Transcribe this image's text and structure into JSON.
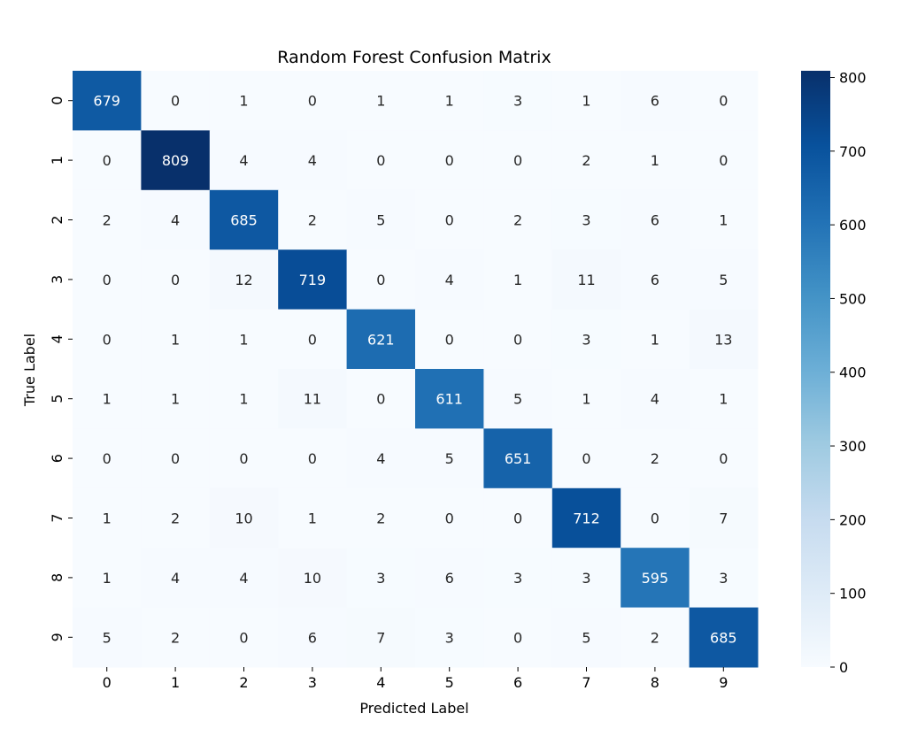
{
  "chart_data": {
    "type": "heatmap",
    "title": "Random Forest Confusion Matrix",
    "xlabel": "Predicted Label",
    "ylabel": "True Label",
    "x_categories": [
      "0",
      "1",
      "2",
      "3",
      "4",
      "5",
      "6",
      "7",
      "8",
      "9"
    ],
    "y_categories": [
      "0",
      "1",
      "2",
      "3",
      "4",
      "5",
      "6",
      "7",
      "8",
      "9"
    ],
    "values": [
      [
        679,
        0,
        1,
        0,
        1,
        1,
        3,
        1,
        6,
        0
      ],
      [
        0,
        809,
        4,
        4,
        0,
        0,
        0,
        2,
        1,
        0
      ],
      [
        2,
        4,
        685,
        2,
        5,
        0,
        2,
        3,
        6,
        1
      ],
      [
        0,
        0,
        12,
        719,
        0,
        4,
        1,
        11,
        6,
        5
      ],
      [
        0,
        1,
        1,
        0,
        621,
        0,
        0,
        3,
        1,
        13
      ],
      [
        1,
        1,
        1,
        11,
        0,
        611,
        5,
        1,
        4,
        1
      ],
      [
        0,
        0,
        0,
        0,
        4,
        5,
        651,
        0,
        2,
        0
      ],
      [
        1,
        2,
        10,
        1,
        2,
        0,
        0,
        712,
        0,
        7
      ],
      [
        1,
        4,
        4,
        10,
        3,
        6,
        3,
        3,
        595,
        3
      ],
      [
        5,
        2,
        0,
        6,
        7,
        3,
        0,
        5,
        2,
        685
      ]
    ],
    "colormap": "Blues",
    "vmin": 0,
    "vmax": 809,
    "colorbar_ticks": [
      0,
      100,
      200,
      300,
      400,
      500,
      600,
      700,
      800
    ],
    "grid": false,
    "legend": "right colorbar"
  }
}
